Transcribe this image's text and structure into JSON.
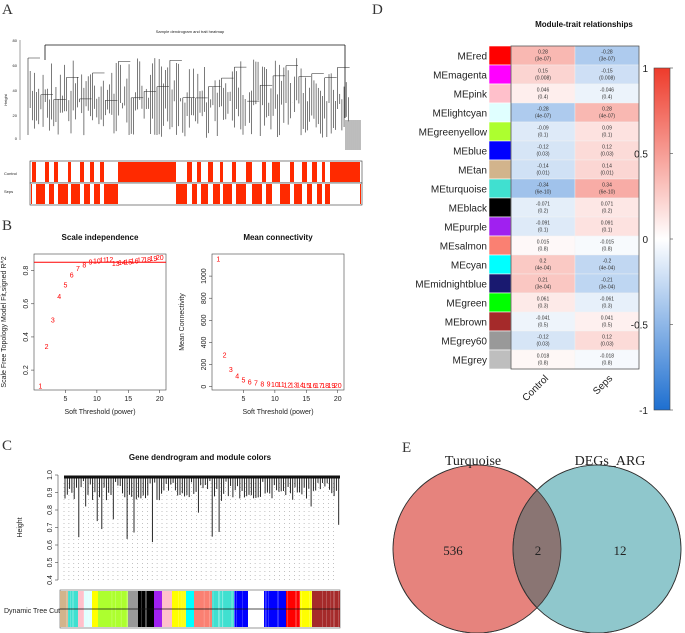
{
  "panels": {
    "A": {
      "letter": "A",
      "title": "Sample dendrogram and trait heatmap",
      "ylabel": "Height",
      "yticks": [
        "80",
        "60",
        "40",
        "20",
        "0"
      ],
      "rows": [
        "Control",
        "Seps"
      ]
    },
    "B": {
      "letter": "B"
    },
    "C": {
      "letter": "C"
    },
    "D": {
      "letter": "D"
    },
    "E": {
      "letter": "E"
    }
  },
  "colors": {
    "red": "#ff0000",
    "trait_red": "#ff2a00",
    "pos": "#ee3b2b",
    "neg": "#1e6fd0",
    "venn_left": "#e6837d",
    "venn_right": "#8fc7cc",
    "venn_overlap": "#8a7573"
  },
  "chart_data": [
    {
      "type": "scatter",
      "panel": "B-left",
      "title": "Scale independence",
      "xlabel": "Soft Threshold (power)",
      "ylabel": "Scale Free Topology Model Fit,signed R^2",
      "xlim": [
        0,
        21
      ],
      "ylim": [
        0.08,
        0.9
      ],
      "xticks": [
        "5",
        "10",
        "15",
        "20"
      ],
      "yticks": [
        "0.2",
        "0.4",
        "0.6",
        "0.8"
      ],
      "cutoff": 0.85,
      "x": [
        1,
        2,
        3,
        4,
        5,
        6,
        7,
        8,
        9,
        10,
        11,
        12,
        13,
        14,
        15,
        16,
        17,
        18,
        19,
        20
      ],
      "y": [
        0.1,
        0.34,
        0.5,
        0.64,
        0.71,
        0.77,
        0.81,
        0.83,
        0.85,
        0.855,
        0.86,
        0.865,
        0.84,
        0.845,
        0.85,
        0.855,
        0.86,
        0.865,
        0.87,
        0.875
      ],
      "labels": [
        "1",
        "2",
        "3",
        "4",
        "5",
        "6",
        "7",
        "8",
        "9",
        "10",
        "11",
        "12",
        "13",
        "14",
        "15",
        "16",
        "17",
        "18",
        "19",
        "20"
      ]
    },
    {
      "type": "scatter",
      "panel": "B-right",
      "title": "Mean connectivity",
      "xlabel": "Soft Threshold (power)",
      "ylabel": "Mean Connectivity",
      "xlim": [
        0,
        21
      ],
      "ylim": [
        -30,
        1200
      ],
      "xticks": [
        "5",
        "10",
        "15",
        "20"
      ],
      "yticks": [
        "0",
        "200",
        "400",
        "600",
        "800",
        "1000"
      ],
      "x": [
        1,
        2,
        3,
        4,
        5,
        6,
        7,
        8,
        9,
        10,
        11,
        12,
        13,
        14,
        15,
        16,
        17,
        18,
        19,
        20
      ],
      "y": [
        1150,
        280,
        150,
        90,
        55,
        38,
        28,
        22,
        18,
        15,
        13,
        11,
        10,
        9,
        8,
        7,
        7,
        6,
        6,
        5
      ],
      "labels": [
        "1",
        "2",
        "3",
        "4",
        "5",
        "6",
        "7",
        "8",
        "9",
        "10",
        "11",
        "12",
        "13",
        "14",
        "15",
        "16",
        "17",
        "18",
        "19",
        "20"
      ]
    },
    {
      "type": "heatmap",
      "panel": "D",
      "title": "Module-trait relationships",
      "columns": [
        "Control",
        "Seps"
      ],
      "scale_ticks": [
        "1",
        "0.5",
        "0",
        "-0.5",
        "-1"
      ],
      "rows": [
        {
          "name": "MEred",
          "color": "#ff0000",
          "values": [
            0.28,
            -0.28
          ],
          "texts": [
            "0.28",
            "-0.28"
          ],
          "p": [
            "(3e-07)",
            "(3e-07)"
          ]
        },
        {
          "name": "MEmagenta",
          "color": "#ff00ff",
          "values": [
            0.15,
            -0.15
          ],
          "texts": [
            "0.15",
            "-0.15"
          ],
          "p": [
            "(0.008)",
            "(0.008)"
          ]
        },
        {
          "name": "MEpink",
          "color": "#ffc0cb",
          "values": [
            0.046,
            -0.046
          ],
          "texts": [
            "0.046",
            "-0.046"
          ],
          "p": [
            "(0.4)",
            "(0.4)"
          ]
        },
        {
          "name": "MElightcyan",
          "color": "#e0ffff",
          "values": [
            -0.28,
            0.28
          ],
          "texts": [
            "-0.28",
            "0.28"
          ],
          "p": [
            "(4e-07)",
            "(4e-07)"
          ]
        },
        {
          "name": "MEgreenyellow",
          "color": "#adff2f",
          "values": [
            -0.09,
            0.09
          ],
          "texts": [
            "-0.09",
            "0.09"
          ],
          "p": [
            "(0.1)",
            "(0.1)"
          ]
        },
        {
          "name": "MEblue",
          "color": "#0000ff",
          "values": [
            -0.12,
            0.12
          ],
          "texts": [
            "-0.12",
            "0.12"
          ],
          "p": [
            "(0.03)",
            "(0.03)"
          ]
        },
        {
          "name": "MEtan",
          "color": "#d2b48c",
          "values": [
            -0.14,
            0.14
          ],
          "texts": [
            "-0.14",
            "0.14"
          ],
          "p": [
            "(0.01)",
            "(0.01)"
          ]
        },
        {
          "name": "MEturquoise",
          "color": "#40e0d0",
          "values": [
            -0.34,
            0.34
          ],
          "texts": [
            "-0.34",
            "0.34"
          ],
          "p": [
            "(6e-10)",
            "(6e-10)"
          ]
        },
        {
          "name": "MEblack",
          "color": "#000000",
          "values": [
            -0.071,
            0.071
          ],
          "texts": [
            "-0.071",
            "0.071"
          ],
          "p": [
            "(0.2)",
            "(0.2)"
          ]
        },
        {
          "name": "MEpurple",
          "color": "#a020f0",
          "values": [
            -0.091,
            0.091
          ],
          "texts": [
            "-0.091",
            "0.091"
          ],
          "p": [
            "(0.1)",
            "(0.1)"
          ]
        },
        {
          "name": "MEsalmon",
          "color": "#fa8072",
          "values": [
            0.015,
            -0.015
          ],
          "texts": [
            "0.015",
            "-0.015"
          ],
          "p": [
            "(0.8)",
            "(0.8)"
          ]
        },
        {
          "name": "MEcyan",
          "color": "#00ffff",
          "values": [
            0.2,
            -0.2
          ],
          "texts": [
            "0.2",
            "-0.2"
          ],
          "p": [
            "(4e-04)",
            "(4e-04)"
          ]
        },
        {
          "name": "MEmidnightblue",
          "color": "#191970",
          "values": [
            0.21,
            -0.21
          ],
          "texts": [
            "0.21",
            "-0.21"
          ],
          "p": [
            "(3e-04)",
            "(3e-04)"
          ]
        },
        {
          "name": "MEgreen",
          "color": "#00ff00",
          "values": [
            0.061,
            -0.061
          ],
          "texts": [
            "0.061",
            "-0.061"
          ],
          "p": [
            "(0.3)",
            "(0.3)"
          ]
        },
        {
          "name": "MEbrown",
          "color": "#a52a2a",
          "values": [
            -0.041,
            0.041
          ],
          "texts": [
            "-0.041",
            "0.041"
          ],
          "p": [
            "(0.5)",
            "(0.5)"
          ]
        },
        {
          "name": "MEgrey60",
          "color": "#999999",
          "values": [
            -0.12,
            0.12
          ],
          "texts": [
            "-0.12",
            "0.12"
          ],
          "p": [
            "(0.03)",
            "(0.03)"
          ]
        },
        {
          "name": "MEgrey",
          "color": "#bebebe",
          "values": [
            0.018,
            -0.018
          ],
          "texts": [
            "0.018",
            "-0.018"
          ],
          "p": [
            "(0.8)",
            "(0.8)"
          ]
        }
      ]
    },
    {
      "type": "venn",
      "panel": "E",
      "sets": [
        {
          "name": "Turquoise",
          "only": 536
        },
        {
          "name": "DEGs_ARG",
          "only": 12
        }
      ],
      "overlap": 2
    },
    {
      "type": "dendrogram",
      "panel": "C",
      "title": "Gene dendrogram and module colors",
      "ylabel": "Height",
      "yticks": [
        "1.0",
        "0.9",
        "0.8",
        "0.7",
        "0.6",
        "0.5",
        "0.4"
      ],
      "ylim": [
        0.4,
        1.0
      ],
      "color_row_label": "Dynamic Tree Cut",
      "module_colors": [
        "#d2b48c",
        "#40e0d0",
        "#ffc0cb",
        "#adff2f",
        "#000000",
        "#e0ffff",
        "#ff00ff",
        "#ffff00",
        "#999999",
        "#40e0d0",
        "#fa8072",
        "#a020f0",
        "#0000ff",
        "#00ffff",
        "#ff0000",
        "#a52a2a"
      ]
    }
  ]
}
